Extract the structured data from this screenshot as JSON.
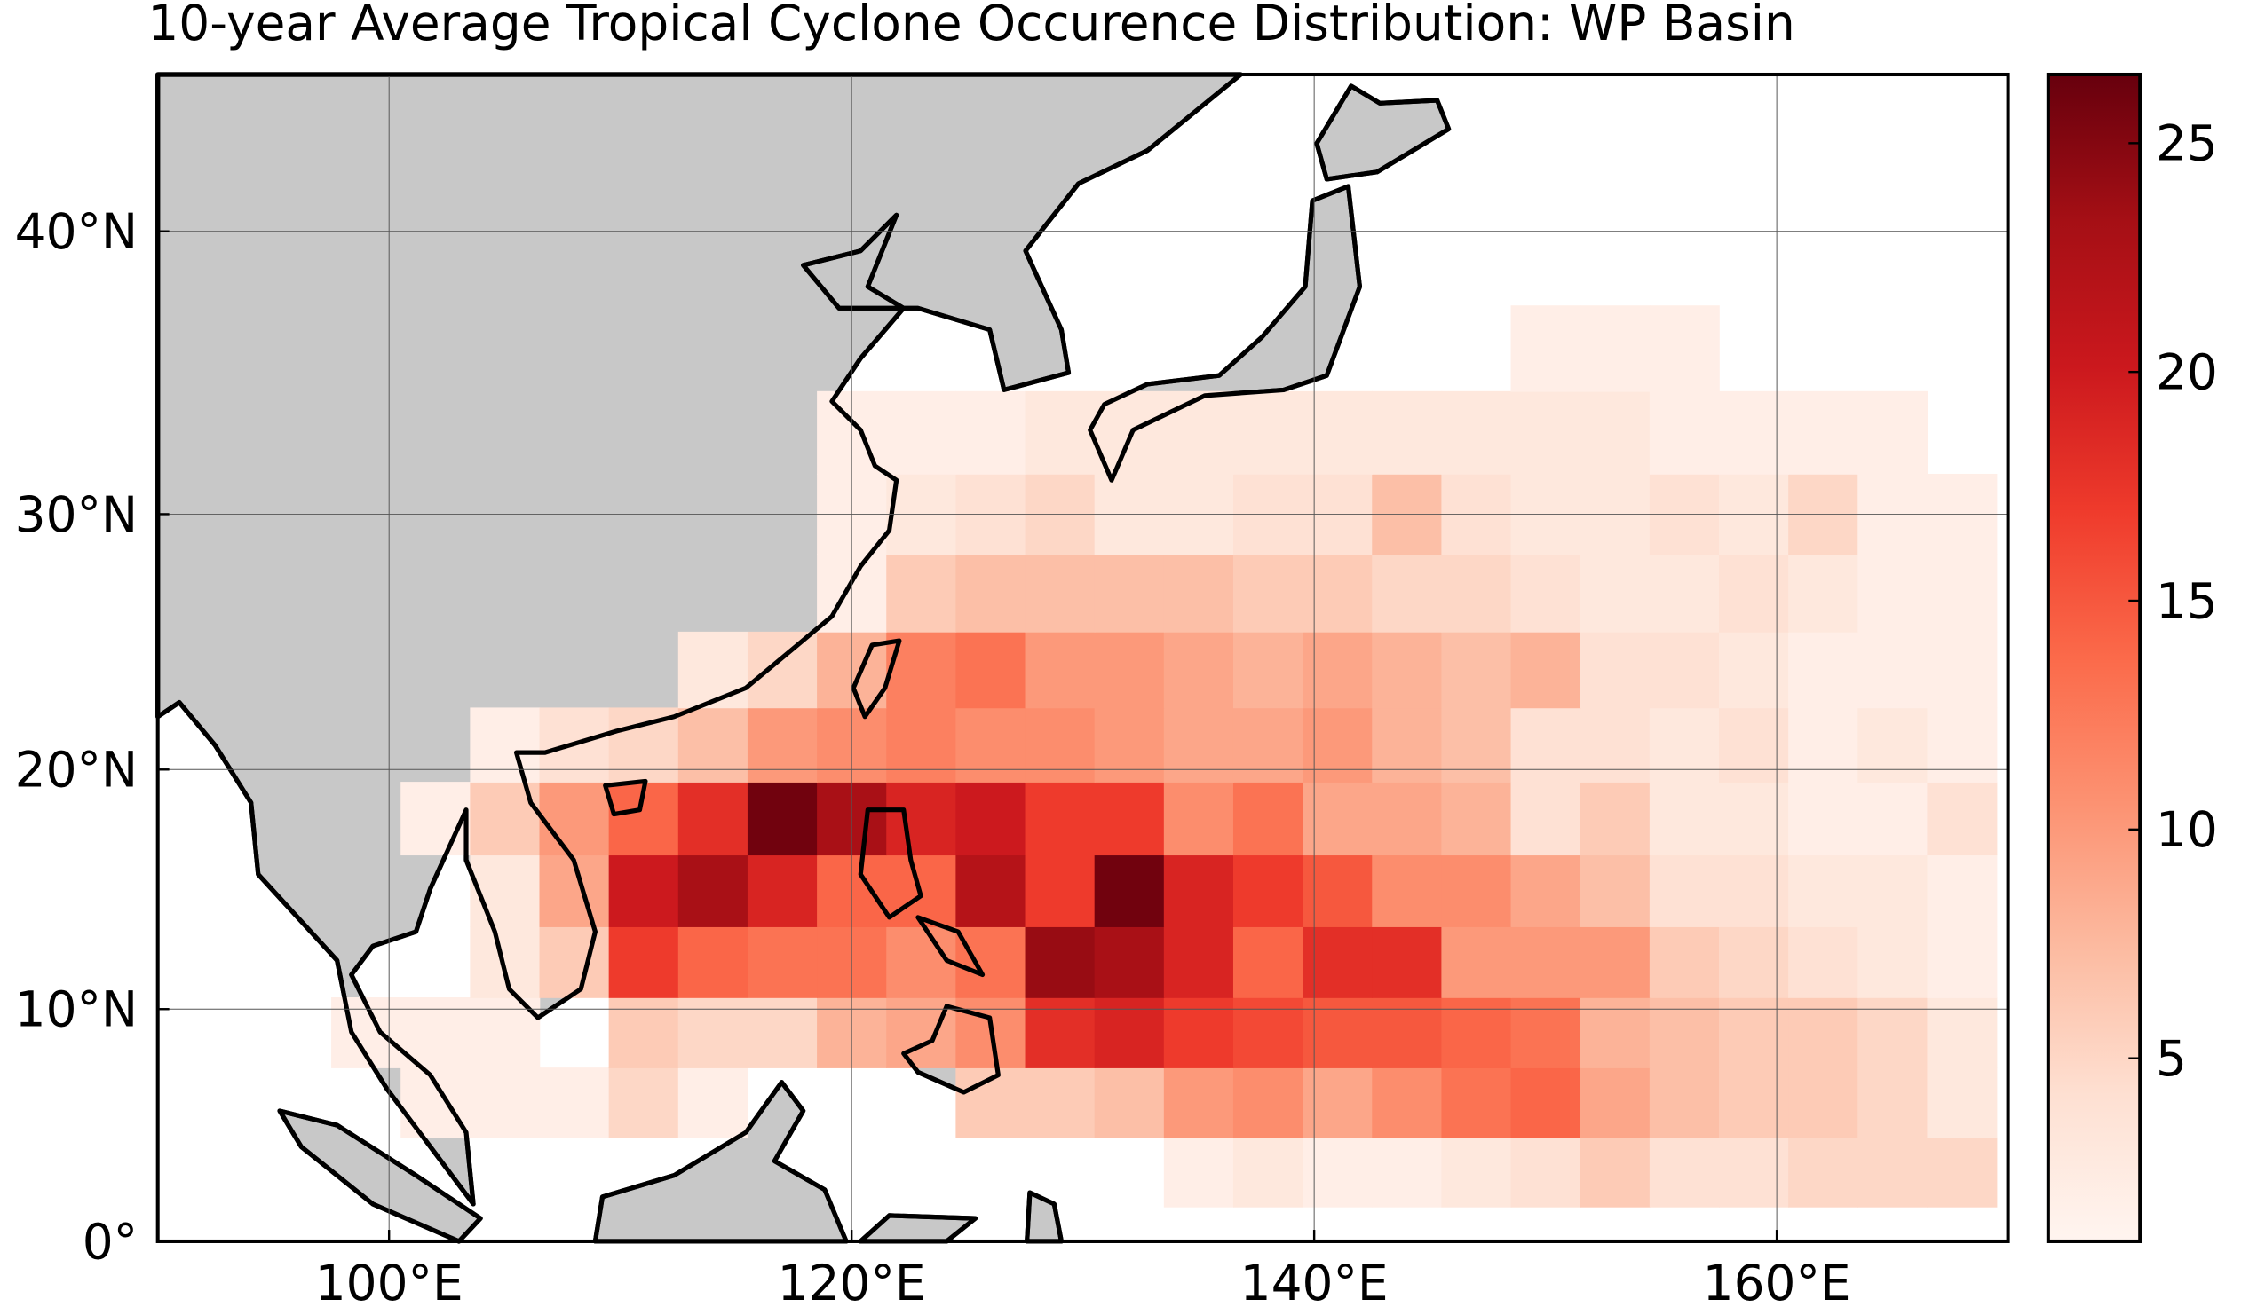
{
  "chart_data": {
    "type": "heatmap",
    "title": "10-year Average Tropical Cyclone Occurence Distribution: WP Basin",
    "projection": "mercator",
    "x": [
      99,
      102,
      105,
      108,
      111,
      114,
      117,
      120,
      123,
      126,
      129,
      132,
      135,
      138,
      141,
      144,
      147,
      150,
      153,
      156,
      159,
      162,
      165,
      168
    ],
    "y": [
      3,
      6,
      9,
      12,
      15,
      18,
      21,
      24,
      27,
      30,
      33,
      36
    ],
    "values": [
      [
        null,
        null,
        null,
        null,
        null,
        null,
        null,
        null,
        null,
        null,
        null,
        null,
        2,
        3,
        2,
        2,
        3,
        4,
        6,
        4,
        4,
        5,
        5,
        5
      ],
      [
        null,
        2,
        2,
        2,
        5,
        2,
        null,
        null,
        null,
        6,
        6,
        7,
        10,
        11,
        9,
        11,
        13,
        14,
        9,
        7,
        6,
        6,
        5,
        3
      ],
      [
        2,
        2,
        2,
        null,
        6,
        5,
        5,
        8,
        9,
        11,
        18,
        19,
        17,
        16,
        15,
        15,
        14,
        13,
        8,
        7,
        6,
        6,
        5,
        3
      ],
      [
        null,
        null,
        3,
        6,
        17,
        14,
        13,
        13,
        11,
        13,
        24,
        23,
        19,
        14,
        18,
        18,
        10,
        10,
        10,
        6,
        5,
        4,
        3,
        2
      ],
      [
        null,
        null,
        3,
        9,
        20,
        23,
        19,
        14,
        14,
        22,
        17,
        26,
        19,
        17,
        15,
        11,
        11,
        9,
        7,
        4,
        4,
        3,
        3,
        2
      ],
      [
        null,
        2,
        6,
        10,
        14,
        18,
        26,
        23,
        19,
        20,
        17,
        17,
        11,
        13,
        9,
        9,
        8,
        4,
        6,
        3,
        3,
        2,
        2,
        4
      ],
      [
        null,
        null,
        2,
        4,
        5,
        7,
        10,
        11,
        12,
        11,
        11,
        10,
        9,
        9,
        10,
        8,
        7,
        4,
        4,
        3,
        4,
        2,
        3,
        2
      ],
      [
        null,
        null,
        null,
        null,
        null,
        3,
        5,
        8,
        12,
        13,
        10,
        10,
        9,
        8,
        9,
        8,
        7,
        8,
        4,
        4,
        3,
        2,
        2,
        2
      ],
      [
        null,
        null,
        null,
        null,
        null,
        null,
        null,
        2,
        6,
        7,
        7,
        7,
        7,
        6,
        6,
        5,
        5,
        4,
        3,
        3,
        4,
        3,
        2,
        2
      ],
      [
        null,
        null,
        null,
        null,
        null,
        null,
        null,
        2,
        3,
        4,
        5,
        3,
        3,
        4,
        4,
        7,
        4,
        3,
        3,
        4,
        3,
        5,
        2,
        2
      ],
      [
        null,
        null,
        null,
        null,
        null,
        null,
        null,
        2,
        2,
        2,
        3,
        3,
        3,
        3,
        3,
        3,
        3,
        3,
        3,
        2,
        2,
        2,
        2,
        null
      ],
      [
        null,
        null,
        null,
        null,
        null,
        null,
        null,
        null,
        null,
        null,
        null,
        null,
        null,
        null,
        null,
        null,
        null,
        2,
        2,
        2,
        null,
        null,
        null,
        null
      ]
    ],
    "xlim": [
      90,
      170
    ],
    "ylim": [
      0,
      45
    ],
    "xticks": [
      {
        "value": 100,
        "label": "100°E"
      },
      {
        "value": 120,
        "label": "120°E"
      },
      {
        "value": 140,
        "label": "140°E"
      },
      {
        "value": 160,
        "label": "160°E"
      }
    ],
    "yticks": [
      {
        "value": 0,
        "label": "0°"
      },
      {
        "value": 10,
        "label": "10°N"
      },
      {
        "value": 20,
        "label": "20°N"
      },
      {
        "value": 30,
        "label": "30°N"
      },
      {
        "value": 40,
        "label": "40°N"
      }
    ],
    "clim": [
      1,
      26.5
    ],
    "cticks": [
      5,
      10,
      15,
      20,
      25
    ],
    "colormap": [
      "#fff5f0",
      "#fee0d2",
      "#fcbba1",
      "#fc9272",
      "#fb6a4a",
      "#ef3b2c",
      "#cb181d",
      "#a50f15",
      "#67000d"
    ],
    "grid": true
  }
}
